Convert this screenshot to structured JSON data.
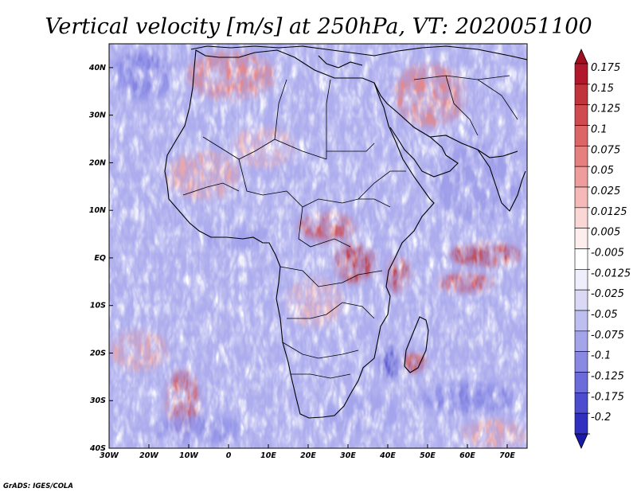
{
  "title": "Vertical velocity [m/s] at 250hPa, VT: 2020051100",
  "credit": "GrADS: IGES/COLA",
  "map": {
    "lon_range": [
      -30,
      75
    ],
    "lat_range": [
      -40,
      45
    ],
    "lon_ticks": [
      {
        "lon": -30,
        "label": "30W"
      },
      {
        "lon": -20,
        "label": "20W"
      },
      {
        "lon": -10,
        "label": "10W"
      },
      {
        "lon": 0,
        "label": "0"
      },
      {
        "lon": 10,
        "label": "10E"
      },
      {
        "lon": 20,
        "label": "20E"
      },
      {
        "lon": 30,
        "label": "30E"
      },
      {
        "lon": 40,
        "label": "40E"
      },
      {
        "lon": 50,
        "label": "50E"
      },
      {
        "lon": 60,
        "label": "60E"
      },
      {
        "lon": 70,
        "label": "70E"
      }
    ],
    "lat_ticks": [
      {
        "lat": 40,
        "label": "40N"
      },
      {
        "lat": 30,
        "label": "30N"
      },
      {
        "lat": 20,
        "label": "20N"
      },
      {
        "lat": 10,
        "label": "10N"
      },
      {
        "lat": 0,
        "label": "EQ"
      },
      {
        "lat": -10,
        "label": "10S"
      },
      {
        "lat": -20,
        "label": "20S"
      },
      {
        "lat": -30,
        "label": "30S"
      },
      {
        "lat": -40,
        "label": "40S"
      }
    ]
  },
  "colorbar": {
    "levels": [
      {
        "label": "0.175",
        "color": "#b2182b"
      },
      {
        "label": "0.15",
        "color": "#c2343b"
      },
      {
        "label": "0.125",
        "color": "#d04b4f"
      },
      {
        "label": "0.1",
        "color": "#dc6666"
      },
      {
        "label": "0.075",
        "color": "#e5807f"
      },
      {
        "label": "0.05",
        "color": "#ee9d9c"
      },
      {
        "label": "0.025",
        "color": "#f5bab8"
      },
      {
        "label": "0.0125",
        "color": "#fad6d4"
      },
      {
        "label": "0.005",
        "color": "#fdeeed"
      },
      {
        "label": "-0.005",
        "color": "#ffffff"
      },
      {
        "label": "-0.0125",
        "color": "#eeeefc"
      },
      {
        "label": "-0.025",
        "color": "#d9d9f6"
      },
      {
        "label": "-0.05",
        "color": "#bebef0"
      },
      {
        "label": "-0.075",
        "color": "#a4a4ea"
      },
      {
        "label": "-0.1",
        "color": "#8989e3"
      },
      {
        "label": "-0.125",
        "color": "#6b6bd9"
      },
      {
        "label": "-0.175",
        "color": "#4c4cce"
      },
      {
        "label": "-0.2",
        "color": "#2f2fc0"
      }
    ],
    "top_tip_color": "#a01020",
    "bottom_tip_color": "#1a1aa8"
  },
  "colors": {
    "background_field": "#b9b9ee",
    "positive": "#e8807e",
    "negative": "#7a7adf",
    "coastline": "#000000"
  }
}
